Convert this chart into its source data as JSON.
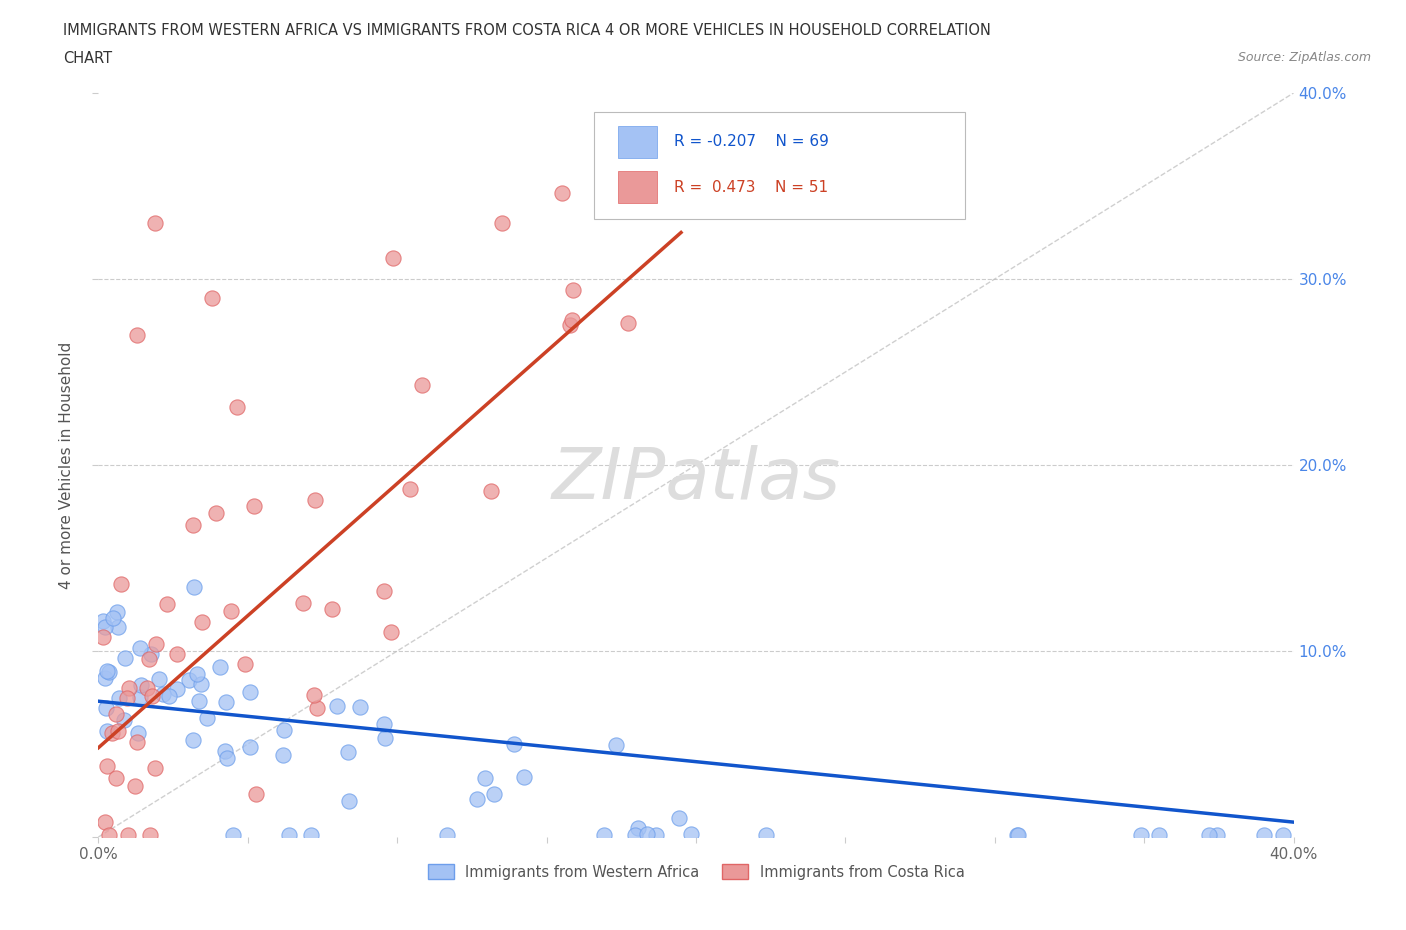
{
  "title_line1": "IMMIGRANTS FROM WESTERN AFRICA VS IMMIGRANTS FROM COSTA RICA 4 OR MORE VEHICLES IN HOUSEHOLD CORRELATION",
  "title_line2": "CHART",
  "source_text": "Source: ZipAtlas.com",
  "ylabel": "4 or more Vehicles in Household",
  "xlim": [
    0.0,
    0.4
  ],
  "ylim": [
    0.0,
    0.4
  ],
  "hlines": [
    0.1,
    0.2,
    0.3
  ],
  "watermark": "ZIPatlas",
  "color_blue": "#a4c2f4",
  "color_blue_edge": "#6d9eeb",
  "color_pink": "#ea9999",
  "color_pink_edge": "#e06666",
  "color_trend_blue": "#1155cc",
  "color_trend_pink": "#cc4125",
  "color_ref_line": "#bbbbbb",
  "color_axis_labels": "#4a86e8",
  "background_color": "#ffffff",
  "legend_r1_text": "R = -0.207",
  "legend_n1_text": "N = 69",
  "legend_r2_text": "R =  0.473",
  "legend_n2_text": "N = 51",
  "blue_trend_x0": 0.0,
  "blue_trend_y0": 0.073,
  "blue_trend_x1": 0.4,
  "blue_trend_y1": 0.008,
  "pink_trend_x0": 0.0,
  "pink_trend_y0": 0.048,
  "pink_trend_x1": 0.195,
  "pink_trend_y1": 0.325
}
